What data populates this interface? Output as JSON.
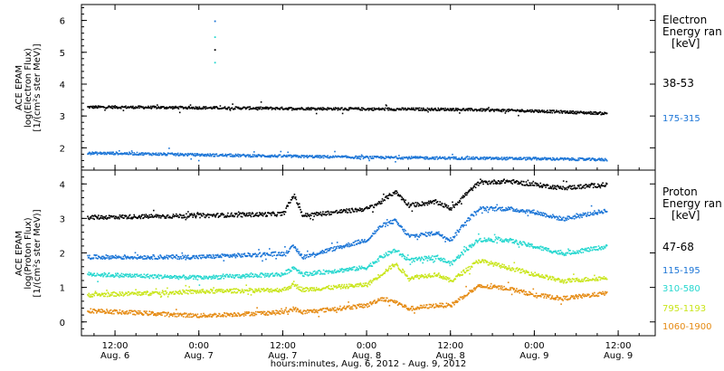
{
  "x_axis": {
    "title": "hours:minutes, Aug.  6, 2012 - Aug.  9, 2012",
    "ticks": [
      {
        "t": 12,
        "time": "12:00",
        "date": "Aug. 6"
      },
      {
        "t": 24,
        "time": "0:00",
        "date": "Aug. 7"
      },
      {
        "t": 36,
        "time": "12:00",
        "date": "Aug. 7"
      },
      {
        "t": 48,
        "time": "0:00",
        "date": "Aug. 8"
      },
      {
        "t": 60,
        "time": "12:00",
        "date": "Aug. 8"
      },
      {
        "t": 72,
        "time": "0:00",
        "date": "Aug. 9"
      },
      {
        "t": 84,
        "time": "12:00",
        "date": "Aug. 9"
      }
    ],
    "range_hours_from_aug6_0000": [
      7.2,
      89.3
    ]
  },
  "colors": {
    "black": "#000000",
    "blue": "#1a74d6",
    "cyan": "#27d7cf",
    "yellow": "#c9e51a",
    "orange": "#e58a12"
  },
  "chart_data": [
    {
      "type": "scatter",
      "panel": "electron",
      "ylabel_lines": [
        "ACE EPAM",
        "log(Electron Flux)",
        "[1/(cm²s ster MeV)]"
      ],
      "ylim": [
        1.3,
        6.5
      ],
      "yticks": [
        2,
        3,
        4,
        5,
        6
      ],
      "legend": {
        "header": [
          "Electron",
          "Energy ran",
          "[keV]"
        ]
      },
      "series": [
        {
          "name": "38-53",
          "color": "black",
          "x": [
            12,
            24,
            36,
            48,
            60,
            72,
            82.3
          ],
          "y": [
            3.3,
            3.28,
            3.26,
            3.24,
            3.23,
            3.18,
            3.1
          ]
        },
        {
          "name": "175-315",
          "color": "blue",
          "x": [
            12,
            24,
            36,
            48,
            60,
            72,
            82.3
          ],
          "y": [
            1.85,
            1.8,
            1.76,
            1.72,
            1.7,
            1.68,
            1.65
          ]
        }
      ],
      "spike": {
        "x": 26.2,
        "y": [
          4.7,
          5.1,
          5.5,
          6.0
        ]
      }
    },
    {
      "type": "scatter",
      "panel": "proton",
      "ylabel_lines": [
        "ACE EPAM",
        "log(Proton Flux)",
        "[1/(cm²s ster MeV)]"
      ],
      "ylim": [
        -0.4,
        4.4
      ],
      "yticks": [
        0,
        1,
        2,
        3,
        4
      ],
      "legend": {
        "header": [
          "Proton",
          "Energy ran",
          "[keV]"
        ]
      },
      "series": [
        {
          "name": "47-68",
          "color": "black",
          "x": [
            8,
            24,
            36,
            37.5,
            38.8,
            48,
            50,
            52,
            54,
            58,
            60,
            62,
            64,
            68,
            72,
            76,
            82.3
          ],
          "y": [
            3.05,
            3.1,
            3.15,
            3.7,
            3.1,
            3.3,
            3.5,
            3.8,
            3.4,
            3.5,
            3.3,
            3.7,
            4.05,
            4.1,
            4.0,
            3.9,
            4.0
          ]
        },
        {
          "name": "115-195",
          "color": "blue",
          "x": [
            8,
            24,
            36,
            37.5,
            38.8,
            48,
            50,
            52,
            54,
            58,
            60,
            62,
            64,
            68,
            72,
            76,
            82.3
          ],
          "y": [
            1.9,
            1.9,
            2.0,
            2.2,
            1.9,
            2.4,
            2.8,
            2.95,
            2.5,
            2.6,
            2.4,
            2.9,
            3.3,
            3.3,
            3.2,
            3.0,
            3.25
          ]
        },
        {
          "name": "310-580",
          "color": "cyan",
          "x": [
            8,
            24,
            36,
            37.5,
            38.8,
            48,
            50,
            52,
            54,
            58,
            60,
            62,
            64,
            68,
            72,
            76,
            82.3
          ],
          "y": [
            1.4,
            1.3,
            1.4,
            1.6,
            1.4,
            1.6,
            1.9,
            2.1,
            1.8,
            1.9,
            1.7,
            2.1,
            2.4,
            2.4,
            2.2,
            2.0,
            2.2
          ]
        },
        {
          "name": "795-1193",
          "color": "yellow",
          "x": [
            8,
            24,
            36,
            37.5,
            38.8,
            48,
            50,
            52,
            54,
            58,
            60,
            62,
            64,
            68,
            72,
            76,
            82.3
          ],
          "y": [
            0.8,
            0.9,
            0.95,
            1.1,
            0.95,
            1.1,
            1.4,
            1.7,
            1.3,
            1.4,
            1.2,
            1.5,
            1.8,
            1.6,
            1.4,
            1.2,
            1.3
          ]
        },
        {
          "name": "1060-1900",
          "color": "orange",
          "x": [
            8,
            24,
            36,
            37.5,
            38.8,
            48,
            50,
            52,
            54,
            58,
            60,
            62,
            64,
            68,
            72,
            76,
            82.3
          ],
          "y": [
            0.35,
            0.2,
            0.3,
            0.4,
            0.3,
            0.5,
            0.7,
            0.6,
            0.4,
            0.5,
            0.5,
            0.8,
            1.05,
            1.0,
            0.8,
            0.7,
            0.85
          ]
        }
      ]
    }
  ]
}
